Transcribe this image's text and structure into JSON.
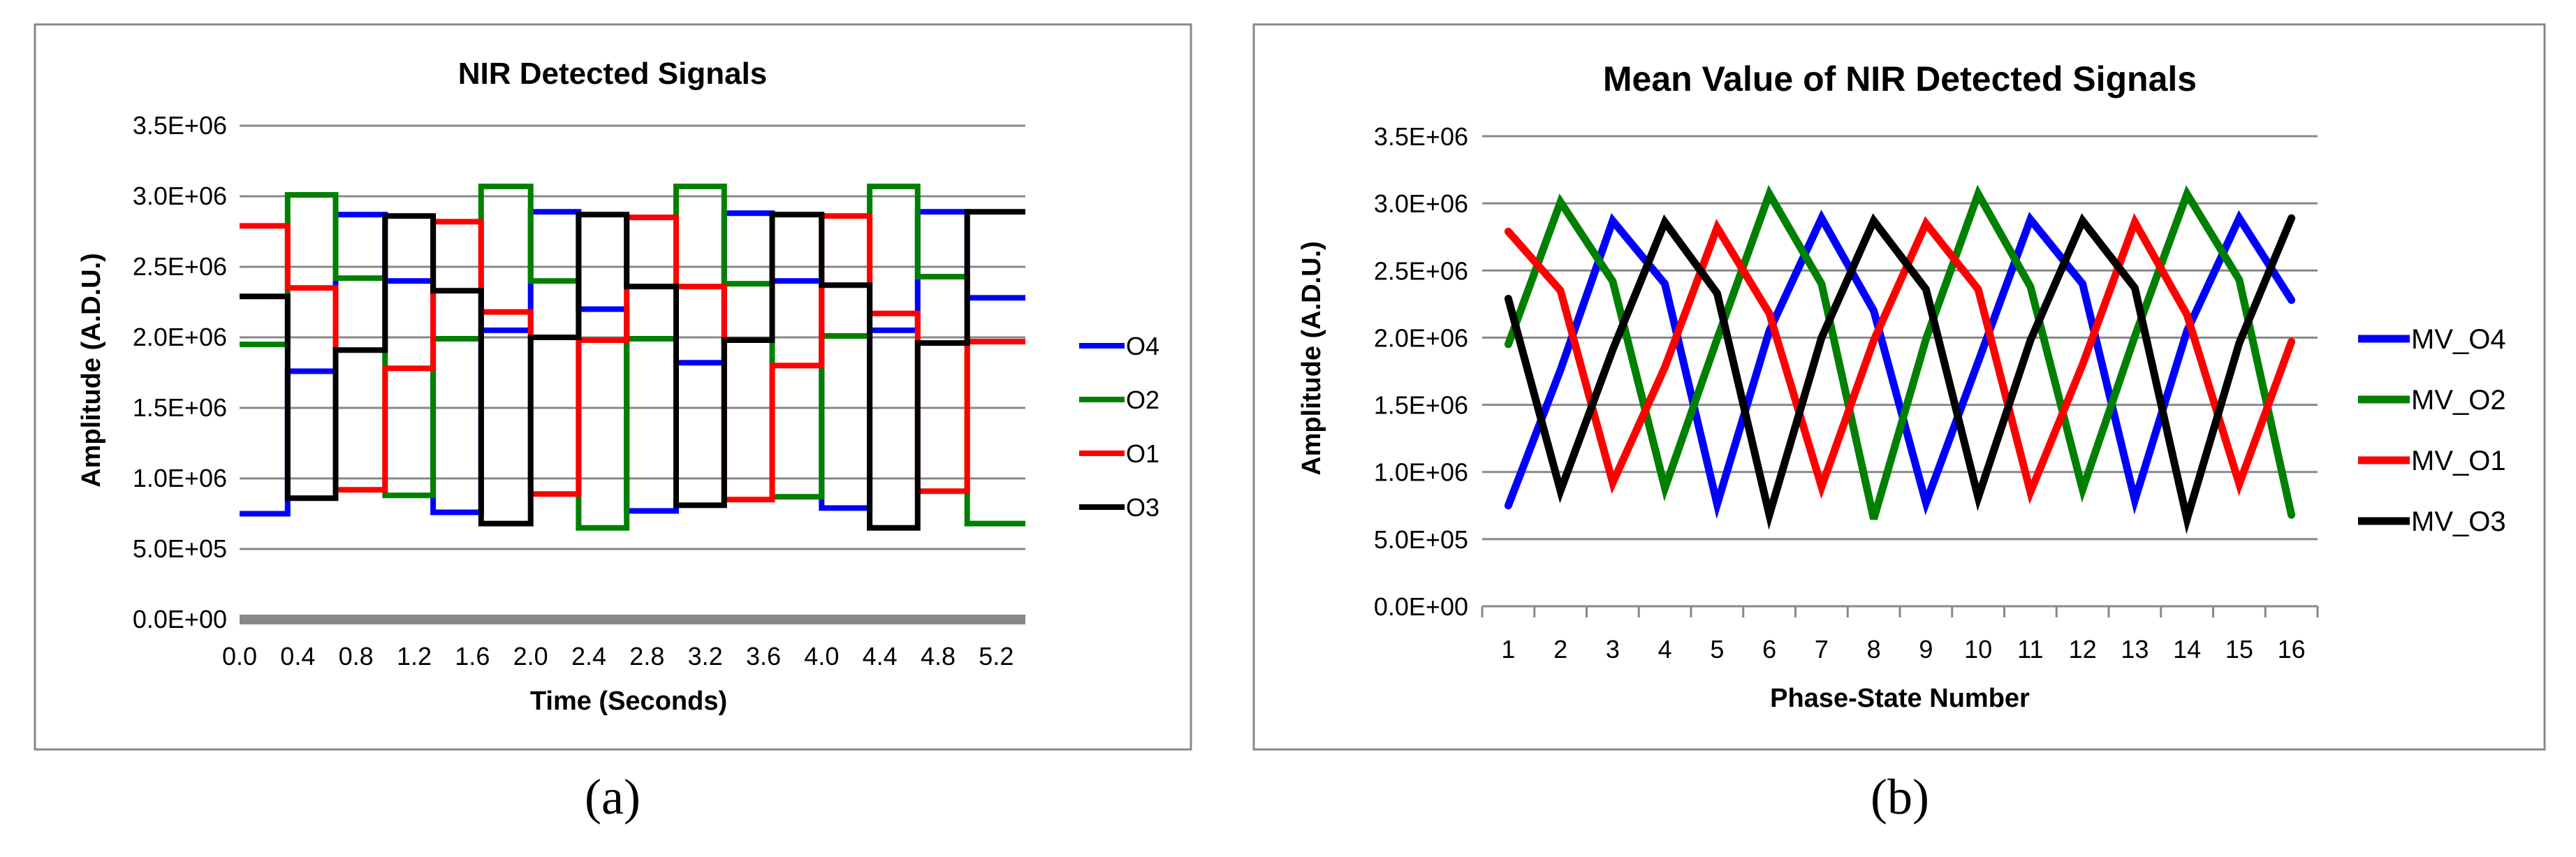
{
  "chart_data": [
    {
      "id": "a",
      "panel_label": "(a)",
      "type": "line",
      "title": "NIR Detected Signals",
      "xlabel": "Time (Seconds)",
      "ylabel": "Amplitude (A.D.U.)",
      "xlim": [
        0,
        5.4
      ],
      "ylim": [
        0,
        3500000
      ],
      "x_ticks": [
        "0.0",
        "0.4",
        "0.8",
        "1.2",
        "1.6",
        "2.0",
        "2.4",
        "2.8",
        "3.2",
        "3.6",
        "4.0",
        "4.4",
        "4.8",
        "5.2"
      ],
      "y_ticks": [
        "0.0E+00",
        "5.0E+05",
        "1.0E+06",
        "1.5E+06",
        "2.0E+06",
        "2.5E+06",
        "3.0E+06",
        "3.5E+06"
      ],
      "grid": true,
      "legend_position": "right",
      "step_times": [
        0,
        0.33,
        0.66,
        1.0,
        1.33,
        1.66,
        2.0,
        2.33,
        2.66,
        3.0,
        3.33,
        3.66,
        4.0,
        4.33,
        4.66,
        5.0,
        5.4
      ],
      "series": [
        {
          "name": "O4",
          "color": "#0000ff",
          "values": [
            750000,
            1760000,
            2870000,
            2400000,
            760000,
            2050000,
            2890000,
            2200000,
            770000,
            1820000,
            2880000,
            2400000,
            790000,
            2050000,
            2890000,
            2280000
          ]
        },
        {
          "name": "O2",
          "color": "#008000",
          "values": [
            1950000,
            3010000,
            2420000,
            880000,
            1990000,
            3070000,
            2400000,
            650000,
            1990000,
            3070000,
            2380000,
            870000,
            2010000,
            3070000,
            2430000,
            680000
          ]
        },
        {
          "name": "O1",
          "color": "#ff0000",
          "values": [
            2790000,
            2350000,
            920000,
            1780000,
            2820000,
            2180000,
            890000,
            1980000,
            2850000,
            2360000,
            850000,
            1800000,
            2860000,
            2170000,
            910000,
            1970000
          ]
        },
        {
          "name": "O3",
          "color": "#000000",
          "values": [
            2290000,
            860000,
            1910000,
            2860000,
            2330000,
            680000,
            2000000,
            2870000,
            2360000,
            810000,
            1980000,
            2870000,
            2370000,
            650000,
            1960000,
            2890000
          ]
        }
      ]
    },
    {
      "id": "b",
      "panel_label": "(b)",
      "type": "line",
      "title": "Mean Value of NIR Detected Signals",
      "xlabel": "Phase-State Number",
      "ylabel": "Amplitude (A.D.U.)",
      "ylim": [
        0,
        3500000
      ],
      "categories": [
        "1",
        "2",
        "3",
        "4",
        "5",
        "6",
        "7",
        "8",
        "9",
        "10",
        "11",
        "12",
        "13",
        "14",
        "15",
        "16"
      ],
      "y_ticks": [
        "0.0E+00",
        "5.0E+05",
        "1.0E+06",
        "1.5E+06",
        "2.0E+06",
        "2.5E+06",
        "3.0E+06",
        "3.5E+06"
      ],
      "grid": true,
      "legend_position": "right",
      "series": [
        {
          "name": "MV_O4",
          "color": "#0000ff",
          "values": [
            750000,
            1760000,
            2870000,
            2400000,
            760000,
            2050000,
            2890000,
            2200000,
            770000,
            1820000,
            2880000,
            2400000,
            790000,
            2050000,
            2890000,
            2280000
          ]
        },
        {
          "name": "MV_O2",
          "color": "#008000",
          "values": [
            1950000,
            3010000,
            2420000,
            880000,
            1990000,
            3070000,
            2400000,
            650000,
            1990000,
            3070000,
            2380000,
            870000,
            2010000,
            3070000,
            2430000,
            680000
          ]
        },
        {
          "name": "MV_O1",
          "color": "#ff0000",
          "values": [
            2790000,
            2350000,
            920000,
            1780000,
            2820000,
            2180000,
            890000,
            1980000,
            2850000,
            2360000,
            850000,
            1800000,
            2860000,
            2170000,
            910000,
            1970000
          ]
        },
        {
          "name": "MV_O3",
          "color": "#000000",
          "values": [
            2290000,
            860000,
            1910000,
            2860000,
            2330000,
            680000,
            2000000,
            2870000,
            2360000,
            810000,
            1980000,
            2870000,
            2370000,
            650000,
            1960000,
            2890000
          ]
        }
      ]
    }
  ]
}
